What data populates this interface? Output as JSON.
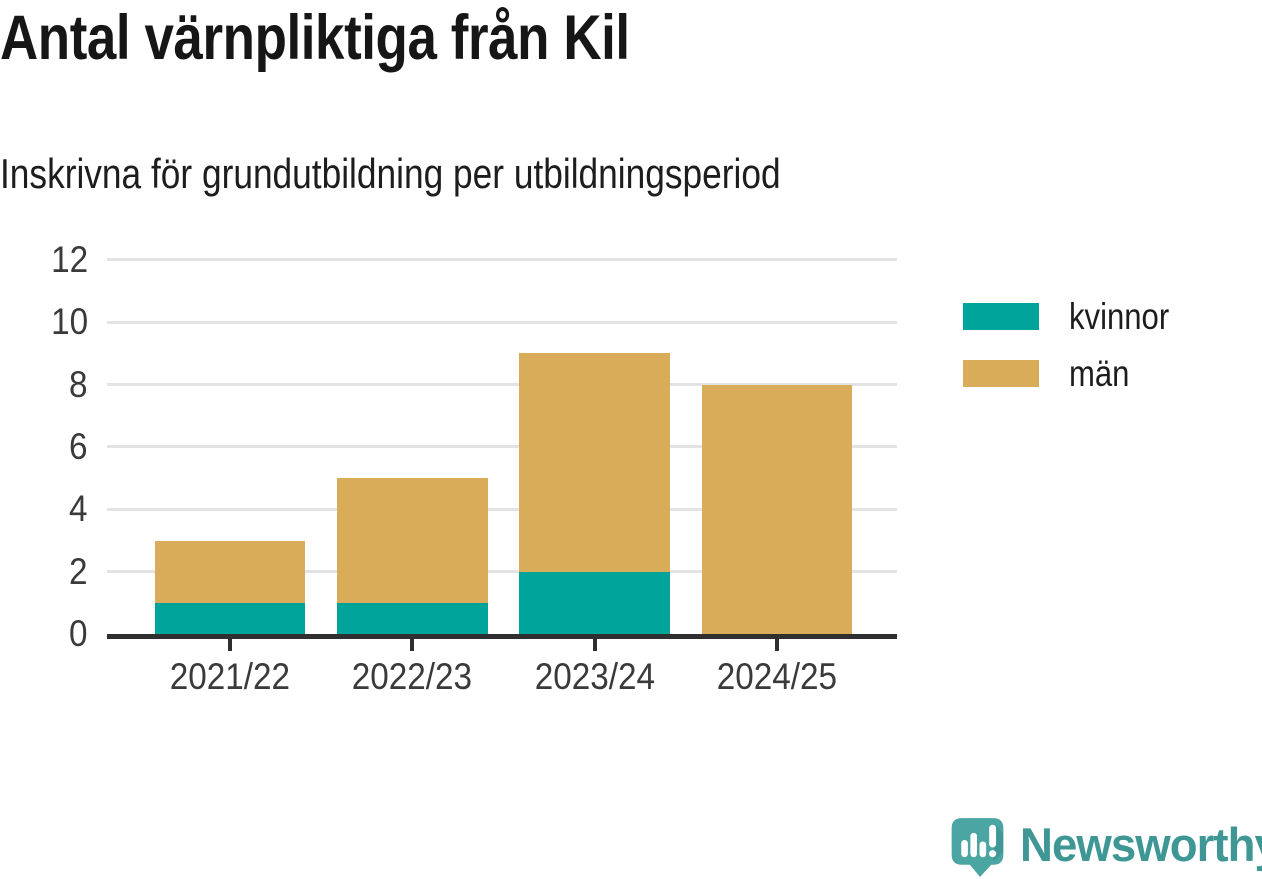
{
  "header": {
    "title": "Antal värnpliktiga från Kil",
    "subtitle": "Inskrivna för grundutbildning per utbildningsperiod"
  },
  "chart_data": {
    "type": "bar",
    "stacked": true,
    "title": "Antal värnpliktiga från Kil",
    "subtitle": "Inskrivna för grundutbildning per utbildningsperiod",
    "categories": [
      "2021/22",
      "2022/23",
      "2023/24",
      "2024/25"
    ],
    "series": [
      {
        "name": "kvinnor",
        "color": "#00a49b",
        "values": [
          1,
          1,
          2,
          0
        ]
      },
      {
        "name": "män",
        "color": "#d9ac59",
        "values": [
          2,
          4,
          7,
          8
        ]
      }
    ],
    "totals": [
      3,
      5,
      9,
      8
    ],
    "yticks": [
      0,
      2,
      4,
      6,
      8,
      10,
      12
    ],
    "ylim": [
      0,
      12
    ],
    "xlabel": "",
    "ylabel": "",
    "grid": true,
    "legend_position": "right"
  },
  "colors": {
    "axis": "#2f2f2f",
    "grid": "#e3e3e3",
    "tick_label": "#3a3a3a",
    "title_text": "#161616"
  },
  "footer": {
    "brand": "Newsworthy",
    "brand_color": "#3f9795",
    "logo_icon": "newsworthy-speech-bubble-chart-icon",
    "logo_color": "#4ba5a2"
  }
}
